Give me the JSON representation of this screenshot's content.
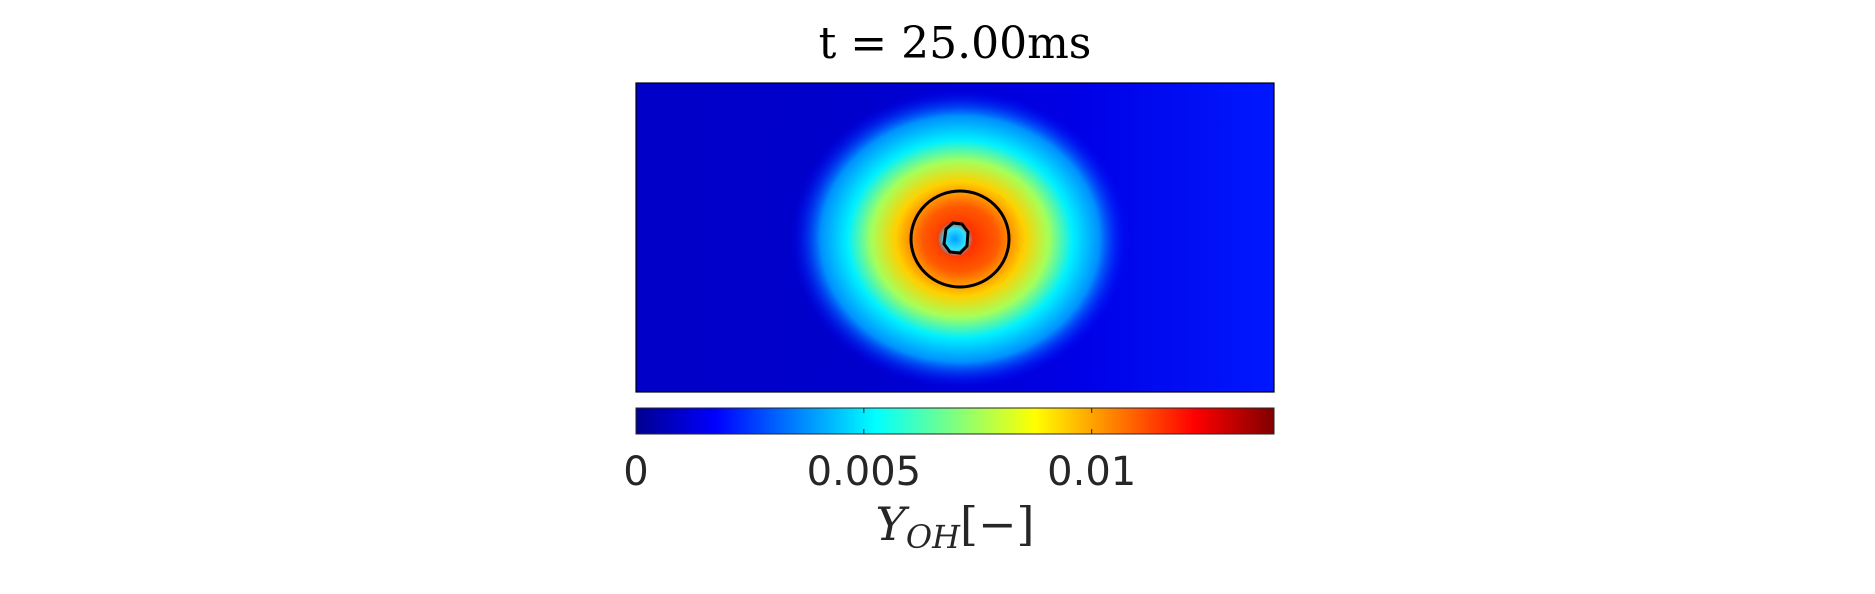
{
  "chart_data": {
    "type": "heatmap",
    "title": "t = 25.00ms",
    "field": {
      "background": "uniform low values on the left side, rising slightly toward the right side",
      "hotspot_center": [
        0.5,
        0.5
      ],
      "peak_value": 0.0125,
      "core_value": 0.004,
      "edge_value": 0.0005
    },
    "contours": [
      {
        "name": "outer-contour",
        "shape": "circle"
      },
      {
        "name": "inner-contour",
        "shape": "polygon"
      }
    ],
    "colorbar": {
      "orientation": "horizontal",
      "colormap": "jet",
      "range": [
        0,
        0.014
      ],
      "ticks": [
        0,
        0.005,
        0.01
      ],
      "tick_labels": [
        "0",
        "0.005",
        "0.01"
      ],
      "label_main": "Y",
      "label_sub": "OH",
      "label_suffix": "[−]"
    },
    "colors": {
      "jet": [
        "#00008f",
        "#0000ff",
        "#00ffff",
        "#ffff00",
        "#ff0000",
        "#800000"
      ],
      "contour": "#000000"
    }
  }
}
